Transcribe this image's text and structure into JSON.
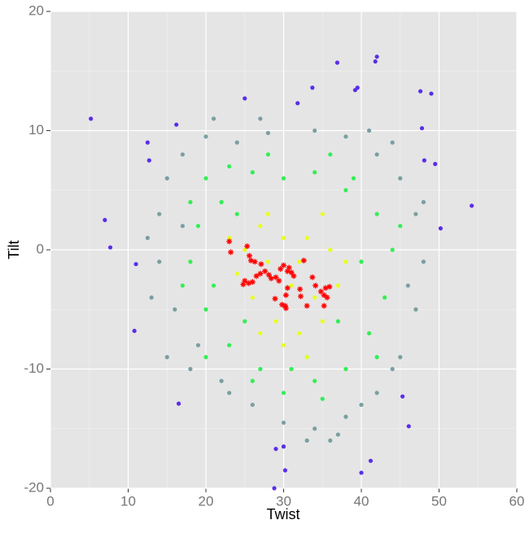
{
  "chart_data": {
    "type": "scatter",
    "x_label": "Twist",
    "y_label": "Tilt",
    "xlim": [
      0,
      60
    ],
    "xticks": [
      0,
      10,
      20,
      30,
      40,
      50,
      60
    ],
    "ylim": [
      -20,
      20
    ],
    "yticks": [
      -20,
      -10,
      0,
      10,
      20
    ],
    "grid": true,
    "series": [
      {
        "color": "#7a9fa0",
        "marker": "circle",
        "x": [
          15,
          17,
          20,
          24,
          28,
          34,
          38,
          42,
          45,
          47,
          48,
          47,
          45,
          42,
          38,
          34,
          30,
          26,
          22,
          19,
          16,
          14,
          14,
          13,
          15,
          18,
          36,
          33,
          44,
          21,
          27,
          41,
          46,
          48,
          12.5,
          37,
          23,
          40,
          17,
          44
        ],
        "y": [
          6,
          8,
          9.5,
          9,
          9.8,
          10,
          9.5,
          8,
          6,
          3,
          -1,
          -5,
          -9,
          -12,
          -14,
          -15,
          -14.5,
          -13,
          -11,
          -8,
          -5,
          -1,
          3,
          -4,
          -9,
          -10,
          -16,
          -16,
          9,
          11,
          11,
          10,
          -3,
          4,
          1,
          -15.5,
          -12,
          -13,
          2,
          -10
        ]
      },
      {
        "color": "#33ee55",
        "marker": "circle",
        "x": [
          18,
          20,
          23,
          26,
          30,
          34,
          38,
          42,
          44,
          43,
          41,
          38,
          34,
          30,
          27,
          23,
          20,
          18,
          19,
          22,
          36,
          28,
          40,
          21,
          25,
          33,
          37,
          39,
          24,
          42,
          17,
          31,
          35,
          20,
          45,
          26
        ],
        "y": [
          4,
          6,
          7,
          6.5,
          6,
          6.5,
          5,
          3,
          0,
          -4,
          -7,
          -10,
          -11,
          -12,
          -10,
          -8,
          -5,
          -1,
          2,
          4,
          8,
          8,
          -1,
          -3,
          -6,
          -9,
          -6,
          6,
          3,
          -9,
          -3,
          -10,
          -12.5,
          -9,
          2,
          -11
        ]
      },
      {
        "color": "#e8ff1a",
        "marker": "circle",
        "x": [
          25,
          27,
          30,
          33,
          36,
          37,
          35,
          32,
          29,
          26,
          24,
          28,
          31,
          34,
          30,
          33,
          28,
          35,
          32,
          27,
          38,
          23
        ],
        "y": [
          0,
          2,
          1,
          1,
          0,
          -3,
          -6,
          -7,
          -6,
          -4,
          -2,
          -1,
          -3,
          -4,
          -8,
          -9,
          3,
          3,
          -1,
          -7,
          -1,
          1
        ]
      },
      {
        "color": "#5a2ee8",
        "marker": "circle",
        "x": [
          5.2,
          7,
          7.7,
          54.2,
          36.9,
          41.8,
          42,
          47.6,
          49,
          39.2,
          39.5,
          33.7,
          31.8,
          25,
          40,
          41.2,
          28.8,
          30.2,
          49.5,
          50.2,
          11,
          12.5,
          10.8,
          16.5,
          46.1,
          29,
          30,
          47.8,
          48.1,
          12.7,
          16.2,
          45.3
        ],
        "y": [
          11,
          2.5,
          0.2,
          3.7,
          15.7,
          15.8,
          16.2,
          13.3,
          13.1,
          13.4,
          13.6,
          13.6,
          12.3,
          12.7,
          -18.7,
          -17.7,
          -20,
          -18.5,
          7.2,
          1.8,
          -1.2,
          9,
          -6.8,
          -12.9,
          -14.8,
          -16.7,
          -16.5,
          10.2,
          7.5,
          7.5,
          10.5,
          -12.3
        ]
      },
      {
        "color": "#ff0000",
        "marker": "star",
        "x": [
          23,
          23.2,
          25.3,
          25.6,
          25.8,
          26.3,
          27.1,
          27.6,
          27,
          28.1,
          26.5,
          25,
          25.5,
          24.8,
          26,
          28.4,
          29,
          29.6,
          30,
          30.5,
          31,
          31.3,
          30.7,
          32.6,
          29.4,
          30.5,
          28.9,
          30.3,
          32.1,
          32.2,
          33.7,
          34.1,
          34.8,
          35.4,
          35.9,
          35.2,
          35.6,
          33,
          35.2,
          29.8,
          30.3,
          30.2
        ],
        "y": [
          0.7,
          -0.2,
          0.3,
          -0.5,
          -0.9,
          -1,
          -1.2,
          -1.8,
          -2,
          -2.1,
          -2.2,
          -2.6,
          -2.8,
          -2.9,
          -2.7,
          -2.4,
          -2.3,
          -1.6,
          -1.3,
          -1.8,
          -1.9,
          -2.2,
          -1.5,
          -0.9,
          -2.6,
          -3.2,
          -4.1,
          -3.8,
          -3.3,
          -3.9,
          -2.3,
          -3,
          -3.5,
          -3.2,
          -3.1,
          -3.8,
          -4,
          -4.7,
          -4.7,
          -4.6,
          -4.9,
          -4.7
        ]
      }
    ]
  }
}
